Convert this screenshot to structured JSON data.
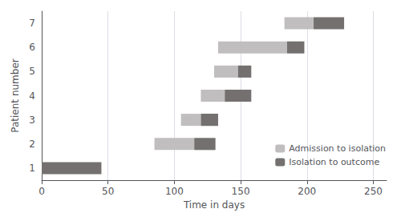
{
  "chart_data": {
    "type": "range_bar",
    "orientation": "horizontal",
    "xlabel": "Time in days",
    "ylabel": "Patient number",
    "categories": [
      1,
      2,
      3,
      4,
      5,
      6,
      7
    ],
    "series": [
      {
        "name": "Admission to isolation",
        "color": "#c0bebe",
        "values": [
          null,
          [
            85,
            115
          ],
          [
            105,
            120
          ],
          [
            120,
            138
          ],
          [
            130,
            148
          ],
          [
            133,
            185
          ],
          [
            183,
            205
          ]
        ]
      },
      {
        "name": "Isolation to outcome",
        "color": "#757070",
        "values": [
          [
            0,
            45
          ],
          [
            115,
            131
          ],
          [
            120,
            133
          ],
          [
            138,
            158
          ],
          [
            148,
            158
          ],
          [
            185,
            198
          ],
          [
            205,
            228
          ]
        ]
      }
    ],
    "xlim": [
      0,
      260
    ],
    "xticks": [
      0,
      50,
      100,
      150,
      200,
      250
    ],
    "grid": true,
    "legend": "lower right"
  }
}
